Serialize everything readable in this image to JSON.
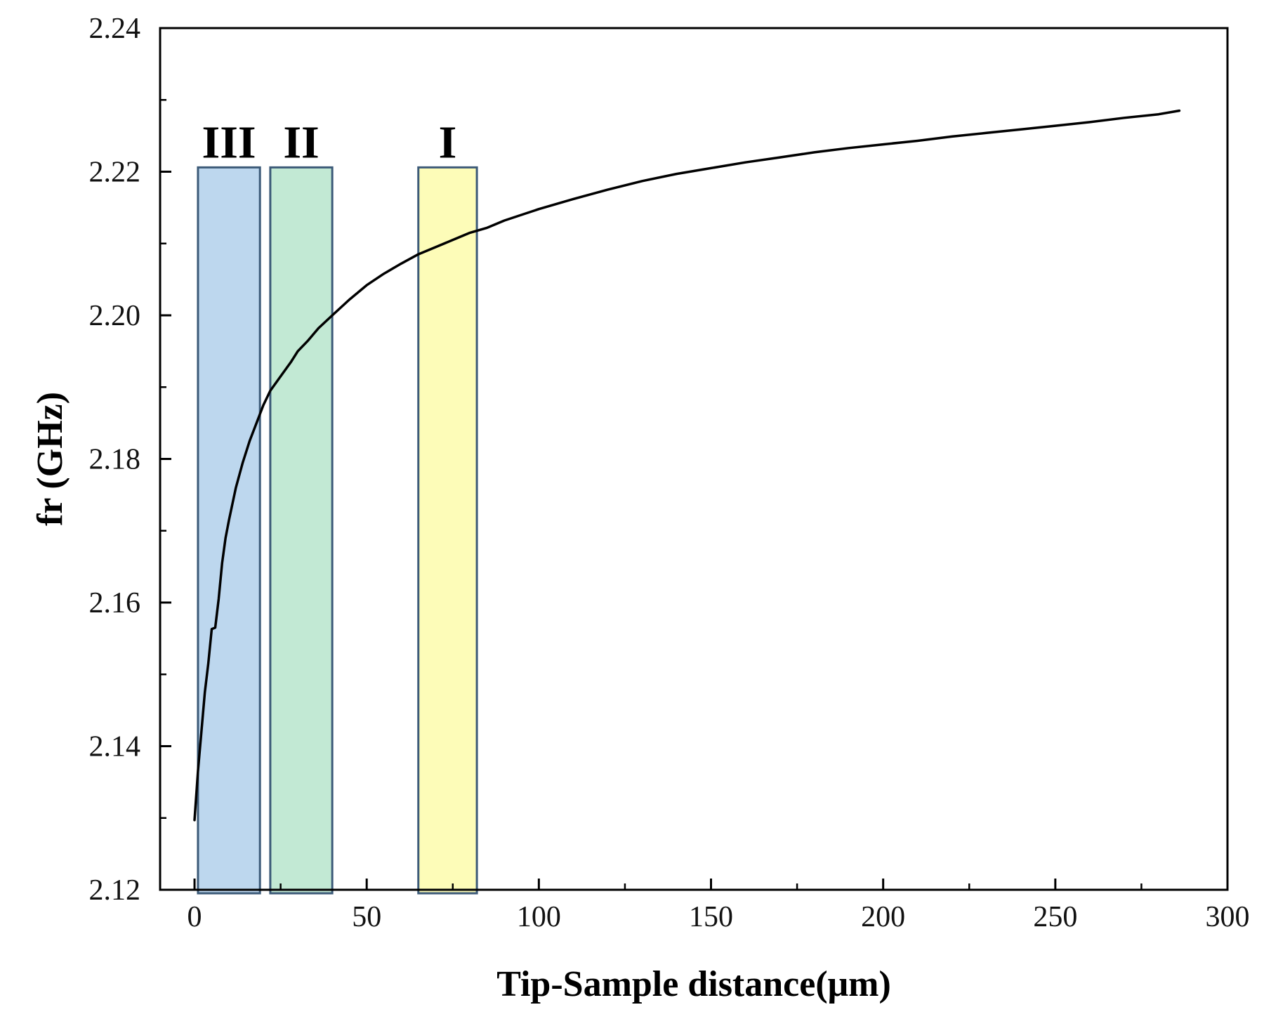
{
  "chart_data": {
    "type": "line",
    "title": "",
    "xlabel": "Tip-Sample distance(μm)",
    "ylabel": "fr (GHz)",
    "xlim": [
      -10,
      300
    ],
    "ylim": [
      2.12,
      2.24
    ],
    "xticks": [
      0,
      50,
      100,
      150,
      200,
      250,
      300
    ],
    "xtick_labels": [
      "0",
      "50",
      "100",
      "150",
      "200",
      "250",
      "300"
    ],
    "yticks": [
      2.12,
      2.14,
      2.16,
      2.18,
      2.2,
      2.22,
      2.24
    ],
    "ytick_labels": [
      "2.12",
      "2.14",
      "2.16",
      "2.18",
      "2.20",
      "2.22",
      "2.24"
    ],
    "grid": false,
    "series": [
      {
        "name": "fr",
        "color": "#000000",
        "x": [
          0,
          1,
          2,
          3,
          4,
          5,
          6,
          7,
          8,
          9,
          10,
          12,
          14,
          16,
          18,
          20,
          22,
          25,
          28,
          30,
          33,
          36,
          40,
          45,
          50,
          55,
          60,
          65,
          70,
          75,
          80,
          85,
          90,
          95,
          100,
          110,
          120,
          130,
          140,
          150,
          160,
          170,
          180,
          190,
          200,
          210,
          220,
          230,
          240,
          250,
          260,
          270,
          280,
          286
        ],
        "y": [
          2.1297,
          2.1365,
          2.142,
          2.1475,
          2.1515,
          2.1563,
          2.1565,
          2.1605,
          2.1655,
          2.169,
          2.1715,
          2.176,
          2.1795,
          2.1825,
          2.185,
          2.1875,
          2.1895,
          2.1915,
          2.1935,
          2.195,
          2.1965,
          2.1982,
          2.2,
          2.2022,
          2.2042,
          2.2058,
          2.2072,
          2.2085,
          2.2095,
          2.2105,
          2.2115,
          2.2122,
          2.2132,
          2.214,
          2.2148,
          2.2162,
          2.2175,
          2.2187,
          2.2197,
          2.2205,
          2.2213,
          2.222,
          2.2227,
          2.2233,
          2.2238,
          2.2243,
          2.2249,
          2.2254,
          2.2259,
          2.2264,
          2.2269,
          2.2275,
          2.228,
          2.2285
        ]
      }
    ],
    "regions": [
      {
        "label": "III",
        "x_start": 1,
        "x_end": 19,
        "y_start": 2.12,
        "y_end": 2.2206,
        "fill": "#bdd7ee",
        "stroke": "#3c5a78"
      },
      {
        "label": "II",
        "x_start": 22,
        "x_end": 40,
        "y_start": 2.12,
        "y_end": 2.2206,
        "fill": "#c2e9d4",
        "stroke": "#3c5a78"
      },
      {
        "label": "I",
        "x_start": 65,
        "x_end": 82,
        "y_start": 2.12,
        "y_end": 2.2206,
        "fill": "#fdfcb8",
        "stroke": "#3c5a78"
      }
    ]
  }
}
